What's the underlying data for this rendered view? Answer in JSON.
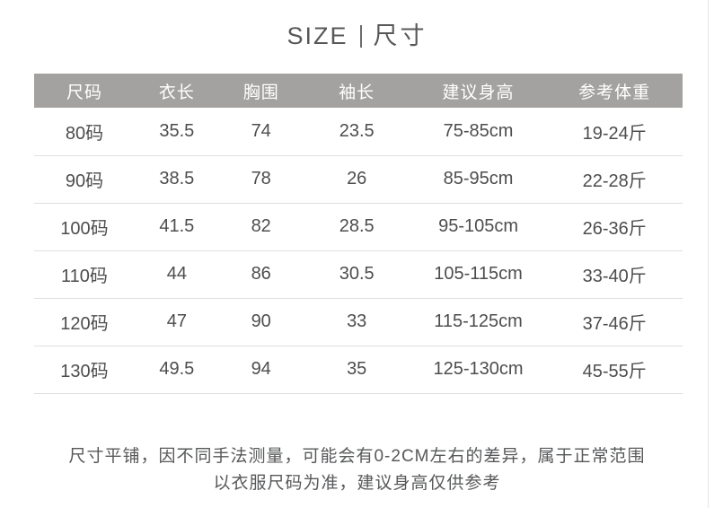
{
  "title": {
    "en": "SIZE",
    "zh": "尺寸"
  },
  "chart_data": {
    "type": "table",
    "title": "SIZE | 尺寸",
    "columns": [
      "尺码",
      "衣长",
      "胸围",
      "袖长",
      "建议身高",
      "参考体重"
    ],
    "rows": [
      [
        "80码",
        "35.5",
        "74",
        "23.5",
        "75-85cm",
        "19-24斤"
      ],
      [
        "90码",
        "38.5",
        "78",
        "26",
        "85-95cm",
        "22-28斤"
      ],
      [
        "100码",
        "41.5",
        "82",
        "28.5",
        "95-105cm",
        "26-36斤"
      ],
      [
        "110码",
        "44",
        "86",
        "30.5",
        "105-115cm",
        "33-40斤"
      ],
      [
        "120码",
        "47",
        "90",
        "33",
        "115-125cm",
        "37-46斤"
      ],
      [
        "130码",
        "49.5",
        "94",
        "35",
        "125-130cm",
        "45-55斤"
      ]
    ],
    "notes": [
      "尺寸平铺，因不同手法测量，可能会有0-2CM左右的差异，属于正常范围",
      "以衣服尺码为准，建议身高仅供参考"
    ]
  },
  "colors": {
    "header_bg": "#a3a2a0",
    "header_text": "#ffffff",
    "body_text": "#4d4d4d",
    "row_divider": "#dfdfdf",
    "title_text": "#57585a"
  }
}
